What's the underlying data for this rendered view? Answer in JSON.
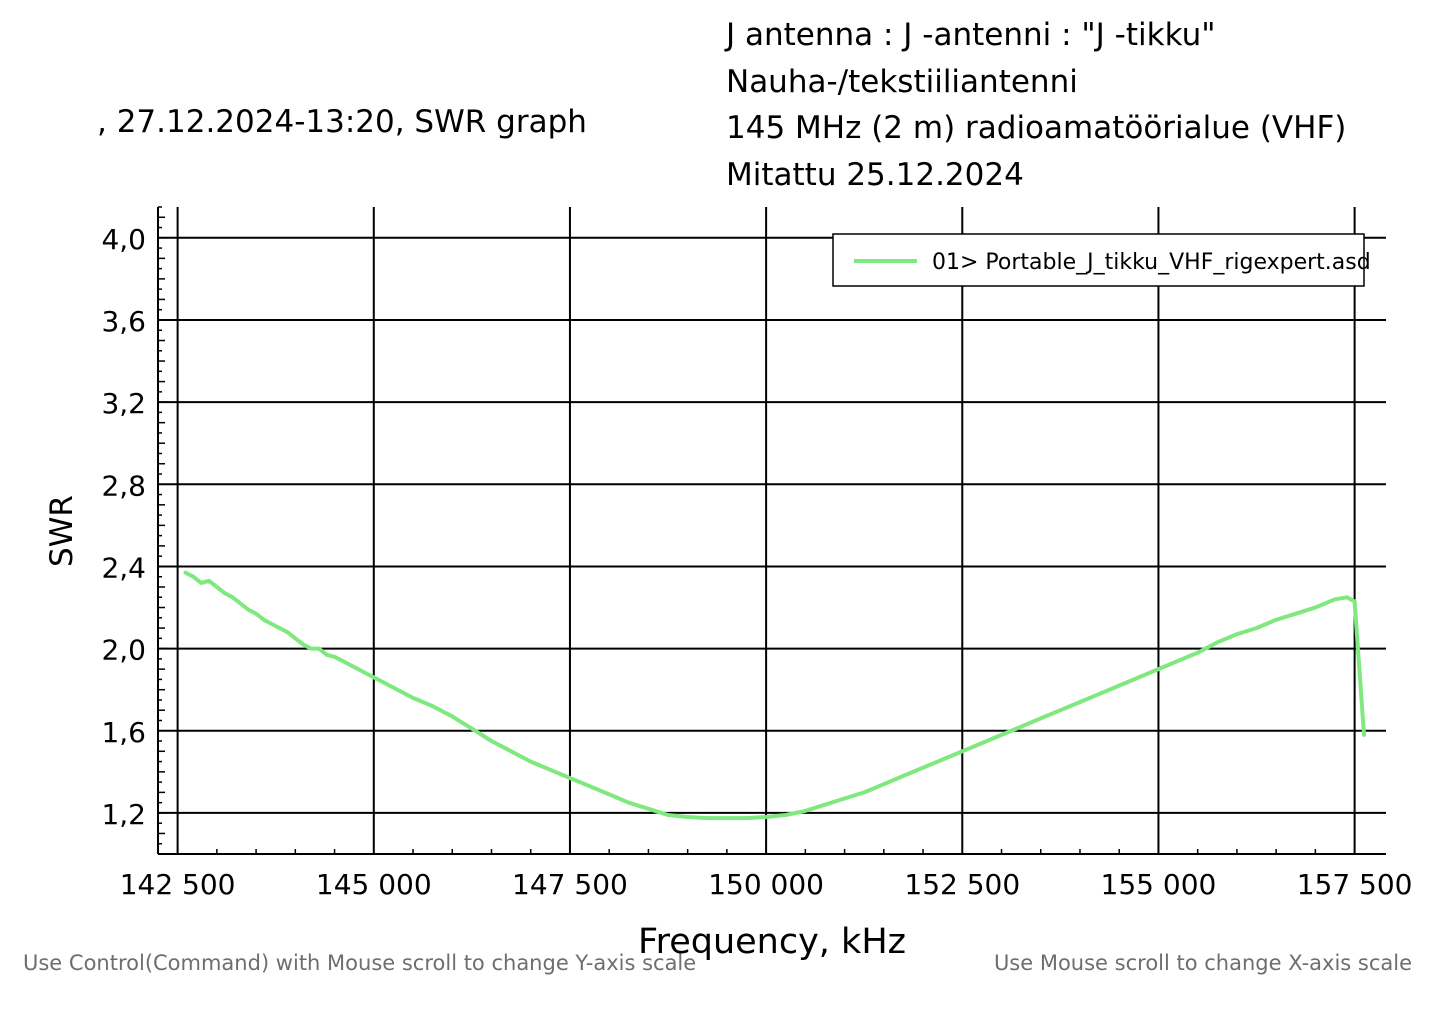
{
  "header": {
    "subtitle": ", 27.12.2024-13:20, SWR graph",
    "title_lines": [
      "J antenna : J -antenni : \"J -tikku\"",
      "Nauha-/tekstiiliantenni",
      "145 MHz (2 m) radioamatöörialue (VHF)",
      "Mitattu 25.12.2024"
    ]
  },
  "hints": {
    "y_scale": "Use Control(Command) with Mouse scroll to change Y-axis scale",
    "x_scale": "Use Mouse scroll to change X-axis scale"
  },
  "colors": {
    "series": "#7fe87f",
    "grid": "#000000",
    "axis": "#000000"
  },
  "chart_data": {
    "type": "line",
    "xlabel": "Frequency, kHz",
    "ylabel": "SWR",
    "xlim": [
      142250,
      157900
    ],
    "ylim": [
      1.0,
      4.15
    ],
    "x_ticks": [
      142500,
      145000,
      147500,
      150000,
      152500,
      155000,
      157500
    ],
    "x_tick_labels": [
      "142 500",
      "145 000",
      "147 500",
      "150 000",
      "152 500",
      "155 000",
      "157 500"
    ],
    "y_ticks": [
      1.2,
      1.6,
      2.0,
      2.4,
      2.8,
      3.2,
      3.6,
      4.0
    ],
    "y_tick_labels": [
      "1,2",
      "1,6",
      "2,0",
      "2,4",
      "2,8",
      "3,2",
      "3,6",
      "4,0"
    ],
    "grid": true,
    "legend_position": "top-right",
    "series": [
      {
        "name": "01> Portable_J_tikku_VHF_rigexpert.asd",
        "x": [
          142600,
          142700,
          142800,
          142900,
          143000,
          143100,
          143200,
          143300,
          143400,
          143500,
          143600,
          143700,
          143800,
          143900,
          144000,
          144100,
          144200,
          144300,
          144400,
          144500,
          144600,
          144700,
          144800,
          144900,
          145000,
          145250,
          145500,
          145750,
          146000,
          146250,
          146500,
          146750,
          147000,
          147250,
          147500,
          147750,
          148000,
          148250,
          148500,
          148750,
          149000,
          149250,
          149500,
          149750,
          150000,
          150250,
          150500,
          150750,
          151000,
          151250,
          151500,
          151750,
          152000,
          152250,
          152500,
          152750,
          153000,
          153250,
          153500,
          153750,
          154000,
          154250,
          154500,
          154750,
          155000,
          155250,
          155500,
          155750,
          156000,
          156250,
          156500,
          156750,
          157000,
          157250,
          157400,
          157500,
          157620
        ],
        "y": [
          2.37,
          2.35,
          2.32,
          2.33,
          2.3,
          2.27,
          2.25,
          2.22,
          2.19,
          2.17,
          2.14,
          2.12,
          2.1,
          2.08,
          2.05,
          2.02,
          2.0,
          2.0,
          1.97,
          1.96,
          1.94,
          1.92,
          1.9,
          1.88,
          1.86,
          1.81,
          1.76,
          1.72,
          1.67,
          1.61,
          1.55,
          1.5,
          1.45,
          1.41,
          1.37,
          1.33,
          1.29,
          1.25,
          1.22,
          1.19,
          1.18,
          1.175,
          1.175,
          1.175,
          1.18,
          1.19,
          1.21,
          1.24,
          1.27,
          1.3,
          1.34,
          1.38,
          1.42,
          1.46,
          1.5,
          1.54,
          1.58,
          1.62,
          1.66,
          1.7,
          1.74,
          1.78,
          1.82,
          1.86,
          1.9,
          1.94,
          1.98,
          2.03,
          2.07,
          2.1,
          2.14,
          2.17,
          2.2,
          2.24,
          2.25,
          2.23,
          1.58
        ]
      }
    ]
  }
}
